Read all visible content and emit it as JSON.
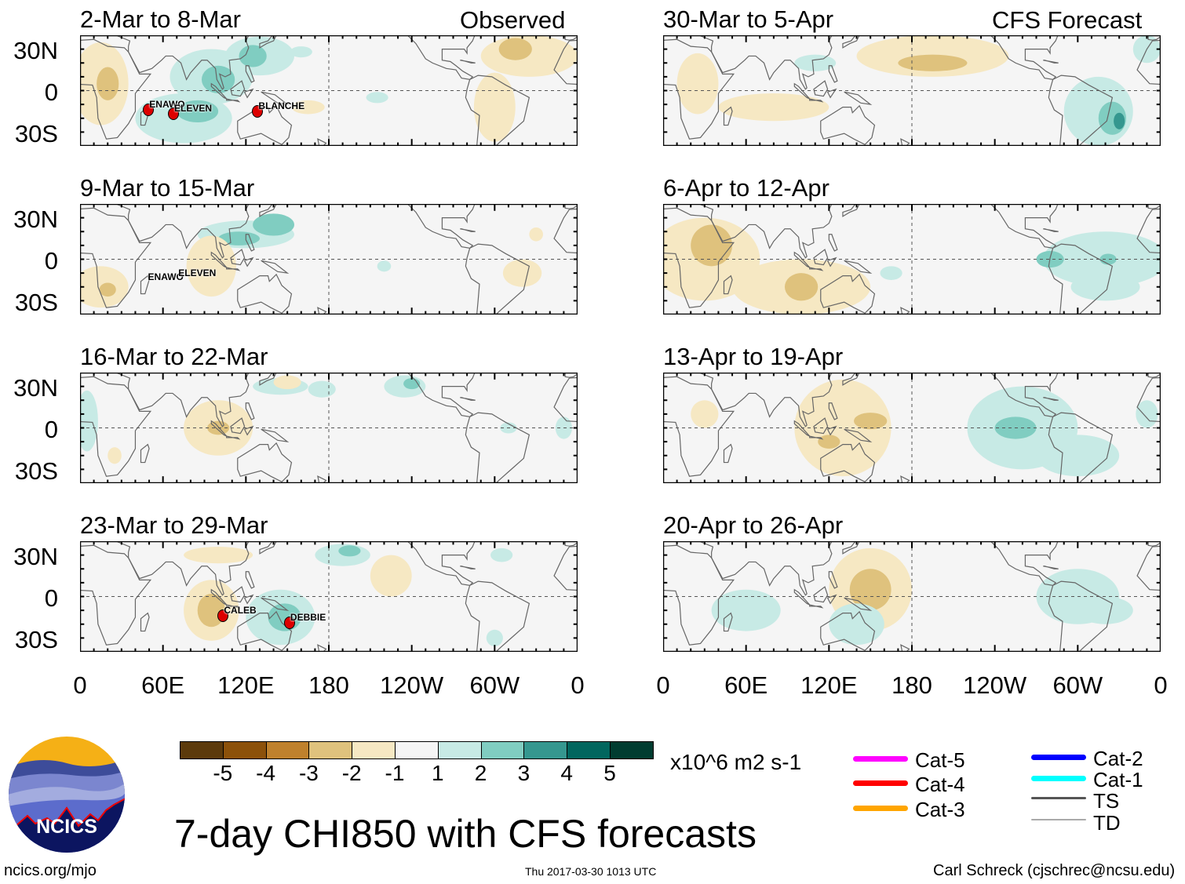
{
  "column_headers": {
    "observed": "Observed",
    "forecast": "CFS Forecast"
  },
  "lat_labels": [
    "30N",
    "0",
    "30S"
  ],
  "lon_labels": [
    "0",
    "60E",
    "120E",
    "180",
    "120W",
    "60W",
    "0"
  ],
  "lon_values": [
    0,
    60,
    120,
    180,
    240,
    300,
    360
  ],
  "panels": [
    {
      "title": "2-Mar to 8-Mar",
      "type": "observed",
      "blobs": [
        [
          95,
          10,
          30,
          20,
          1
        ],
        [
          100,
          8,
          12,
          10,
          2
        ],
        [
          130,
          25,
          25,
          14,
          1
        ],
        [
          125,
          25,
          10,
          8,
          2
        ],
        [
          75,
          -20,
          35,
          18,
          1
        ],
        [
          85,
          -15,
          15,
          8,
          2
        ],
        [
          160,
          28,
          8,
          4,
          1
        ],
        [
          215,
          -5,
          8,
          4,
          1
        ],
        [
          15,
          5,
          20,
          30,
          -1
        ],
        [
          20,
          5,
          8,
          12,
          -2
        ],
        [
          325,
          25,
          35,
          15,
          -1
        ],
        [
          315,
          30,
          12,
          8,
          -2
        ],
        [
          300,
          -12,
          15,
          25,
          -1
        ],
        [
          165,
          -12,
          12,
          5,
          -1
        ]
      ],
      "storms": [
        {
          "name": "ENAWO",
          "lon": 49,
          "lat": -14,
          "icon": true
        },
        {
          "name": "ELEVEN",
          "lon": 67,
          "lat": -17,
          "icon": true
        },
        {
          "name": "BLANCHE",
          "lon": 128,
          "lat": -15,
          "icon": true
        }
      ]
    },
    {
      "title": "9-Mar to 15-Mar",
      "type": "observed",
      "blobs": [
        [
          120,
          18,
          35,
          10,
          1
        ],
        [
          115,
          15,
          15,
          5,
          2
        ],
        [
          140,
          25,
          15,
          8,
          2
        ],
        [
          15,
          -20,
          20,
          15,
          -1
        ],
        [
          20,
          -22,
          6,
          5,
          -2
        ],
        [
          95,
          -5,
          18,
          22,
          -1
        ],
        [
          320,
          -10,
          14,
          10,
          -1
        ],
        [
          330,
          18,
          5,
          5,
          -1
        ],
        [
          220,
          -5,
          5,
          4,
          1
        ]
      ],
      "storms": [
        {
          "name": "ENAWO",
          "lon": 48,
          "lat": -17,
          "icon": false
        },
        {
          "name": "ELEVEN",
          "lon": 70,
          "lat": -14,
          "icon": false
        }
      ]
    },
    {
      "title": "16-Mar to 22-Mar",
      "type": "observed",
      "blobs": [
        [
          100,
          0,
          25,
          20,
          -1
        ],
        [
          100,
          0,
          8,
          5,
          -2
        ],
        [
          145,
          30,
          20,
          6,
          1
        ],
        [
          175,
          28,
          10,
          6,
          1
        ],
        [
          235,
          30,
          15,
          8,
          1
        ],
        [
          240,
          32,
          6,
          4,
          2
        ],
        [
          5,
          5,
          8,
          22,
          1
        ],
        [
          310,
          0,
          6,
          4,
          1
        ],
        [
          350,
          0,
          6,
          8,
          1
        ],
        [
          25,
          -20,
          5,
          6,
          -1
        ],
        [
          150,
          33,
          10,
          5,
          -1
        ]
      ],
      "storms": []
    },
    {
      "title": "23-Mar to 29-Mar",
      "type": "observed",
      "blobs": [
        [
          95,
          -10,
          20,
          22,
          -1
        ],
        [
          95,
          -10,
          10,
          12,
          -2
        ],
        [
          225,
          15,
          15,
          15,
          -1
        ],
        [
          100,
          30,
          25,
          6,
          -1
        ],
        [
          145,
          -15,
          25,
          20,
          1
        ],
        [
          148,
          -15,
          12,
          10,
          2
        ],
        [
          190,
          30,
          20,
          8,
          1
        ],
        [
          195,
          33,
          8,
          4,
          2
        ],
        [
          305,
          30,
          8,
          5,
          1
        ],
        [
          300,
          -30,
          6,
          6,
          1
        ]
      ],
      "storms": [
        {
          "name": "CALEB",
          "lon": 103,
          "lat": -14,
          "icon": true
        },
        {
          "name": "DEBBIE",
          "lon": 151,
          "lat": -19,
          "icon": true
        }
      ]
    },
    {
      "title": "30-Mar to 5-Apr",
      "type": "forecast",
      "blobs": [
        [
          195,
          25,
          55,
          15,
          -1
        ],
        [
          195,
          20,
          25,
          6,
          -2
        ],
        [
          80,
          -12,
          40,
          10,
          -1
        ],
        [
          25,
          5,
          15,
          22,
          -1
        ],
        [
          315,
          -15,
          25,
          25,
          1
        ],
        [
          325,
          -20,
          10,
          12,
          2
        ],
        [
          330,
          -22,
          4,
          6,
          3
        ],
        [
          350,
          30,
          10,
          10,
          1
        ],
        [
          110,
          20,
          15,
          6,
          1
        ]
      ],
      "storms": []
    },
    {
      "title": "6-Apr to 12-Apr",
      "type": "forecast",
      "blobs": [
        [
          30,
          0,
          40,
          30,
          -1
        ],
        [
          35,
          10,
          15,
          15,
          -2
        ],
        [
          100,
          -20,
          50,
          20,
          -1
        ],
        [
          100,
          -20,
          12,
          10,
          -2
        ],
        [
          320,
          0,
          45,
          20,
          1
        ],
        [
          322,
          0,
          6,
          4,
          2
        ],
        [
          280,
          0,
          10,
          6,
          2
        ],
        [
          320,
          -20,
          25,
          10,
          1
        ],
        [
          165,
          -10,
          8,
          5,
          1
        ]
      ],
      "storms": []
    },
    {
      "title": "13-Apr to 19-Apr",
      "type": "forecast",
      "blobs": [
        [
          130,
          0,
          35,
          35,
          -1
        ],
        [
          150,
          5,
          12,
          6,
          -2
        ],
        [
          120,
          -10,
          8,
          5,
          -2
        ],
        [
          260,
          0,
          40,
          30,
          1
        ],
        [
          255,
          0,
          15,
          8,
          2
        ],
        [
          350,
          10,
          8,
          10,
          1
        ],
        [
          300,
          -20,
          30,
          15,
          1
        ],
        [
          30,
          10,
          10,
          10,
          -1
        ]
      ],
      "storms": []
    },
    {
      "title": "20-Apr to 26-Apr",
      "type": "forecast",
      "blobs": [
        [
          150,
          5,
          30,
          30,
          -1
        ],
        [
          150,
          5,
          15,
          15,
          -2
        ],
        [
          60,
          -10,
          25,
          15,
          1
        ],
        [
          140,
          -20,
          20,
          15,
          1
        ],
        [
          300,
          0,
          30,
          20,
          1
        ],
        [
          320,
          -10,
          20,
          10,
          1
        ]
      ],
      "storms": []
    }
  ],
  "colorbar": {
    "colors": [
      "#5c3a0c",
      "#8c510a",
      "#bf812d",
      "#dfc27d",
      "#f6e8c3",
      "#f5f5f5",
      "#c7eae5",
      "#80cdc1",
      "#35978f",
      "#01665e",
      "#003c30"
    ],
    "ticks": [
      "-5",
      "-4",
      "-3",
      "-2",
      "-1",
      "1",
      "2",
      "3",
      "4",
      "5"
    ],
    "units": "x10^6 m2 s-1"
  },
  "track_legend": [
    {
      "label": "Cat-5",
      "color": "#ff00ff"
    },
    {
      "label": "Cat-4",
      "color": "#ff0000"
    },
    {
      "label": "Cat-3",
      "color": "#ffa500"
    },
    {
      "label": "Cat-2",
      "color": "#0000ff"
    },
    {
      "label": "Cat-1",
      "color": "#00ffff"
    },
    {
      "label": "TS",
      "color": "#555555"
    },
    {
      "label": "TD",
      "color": "#aaaaaa"
    }
  ],
  "logo": {
    "text": "NCICS"
  },
  "footer": {
    "title": "7-day CHI850 with CFS forecasts",
    "url": "ncics.org/mjo",
    "timestamp": "Thu 2017-03-30 1013 UTC",
    "author": "Carl Schreck (cjschrec@ncsu.edu)"
  }
}
